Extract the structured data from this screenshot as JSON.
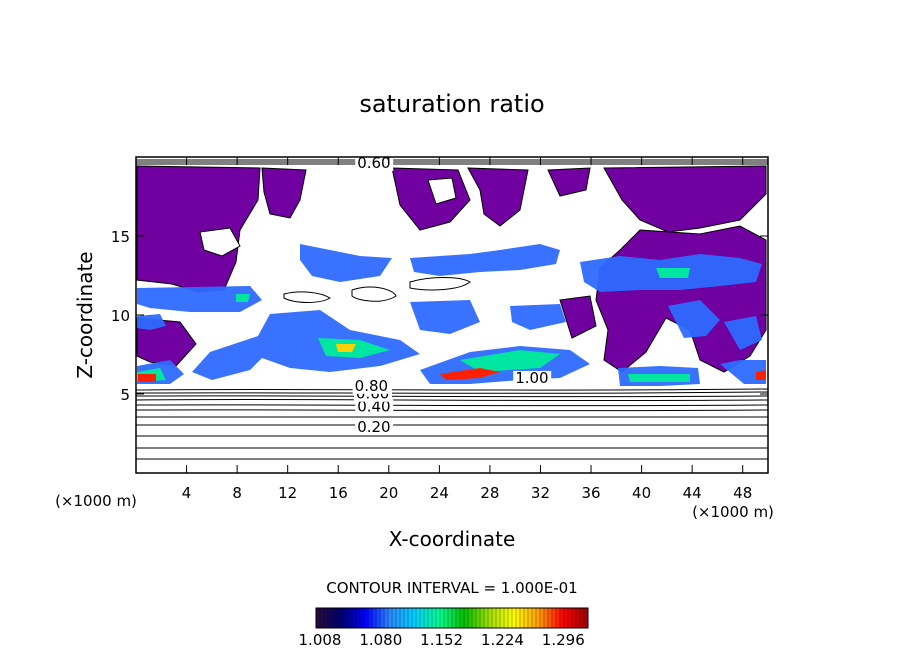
{
  "chart_data": {
    "type": "heatmap",
    "title": "saturation ratio",
    "xlabel": "X-coordinate",
    "ylabel": "Z-coordinate",
    "x_unit": "(×1000 m)",
    "z_unit": "(×1000 m)",
    "xlim": [
      0,
      50
    ],
    "ylim": [
      0,
      20
    ],
    "x_ticks": [
      4,
      8,
      12,
      16,
      20,
      24,
      28,
      32,
      36,
      40,
      44,
      48
    ],
    "y_ticks": [
      5,
      10,
      15
    ],
    "contour_interval_label": "CONTOUR INTERVAL = 1.000E-01",
    "contour_labels": [
      {
        "text": "0.20",
        "x": 17.5,
        "z": 2.6
      },
      {
        "text": "0.40",
        "x": 17.5,
        "z": 3.9
      },
      {
        "text": "0.60",
        "x": 17.4,
        "z": 4.7
      },
      {
        "text": "0.80",
        "x": 17.3,
        "z": 5.2
      },
      {
        "text": "1.00",
        "x": 30.0,
        "z": 5.7
      },
      {
        "text": "0.60",
        "x": 17.5,
        "z": 19.3
      }
    ],
    "colorbar": {
      "range": [
        1.008,
        1.33
      ],
      "tick_labels": [
        "1.008",
        "1.080",
        "1.152",
        "1.224",
        "1.296"
      ],
      "colors": [
        "#2a0a3a",
        "#000070",
        "#0000ff",
        "#2e8bff",
        "#00d0ff",
        "#00ff90",
        "#00c000",
        "#a0e000",
        "#ffff00",
        "#ffa000",
        "#ff0000",
        "#a00000"
      ]
    },
    "colors": {
      "background_cloud": "#7000a0",
      "axis": "#000000"
    }
  }
}
